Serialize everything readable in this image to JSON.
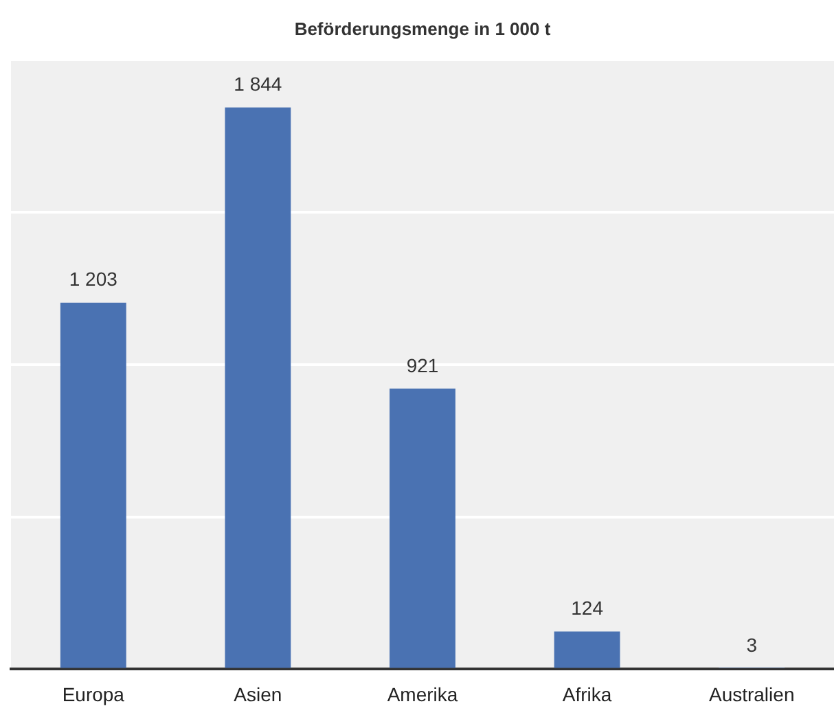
{
  "chart_data": {
    "type": "bar",
    "title": "Beförderungsmenge in 1 000 t",
    "categories": [
      "Europa",
      "Asien",
      "Amerika",
      "Afrika",
      "Australien"
    ],
    "values": [
      1203,
      1844,
      921,
      124,
      3
    ],
    "color": "#4a72b2",
    "value_labels": [
      "1 203",
      "1 844",
      "921",
      "124",
      "3"
    ],
    "ylim": [
      0,
      2000
    ],
    "yticks": [
      {
        "value": 0,
        "label": null
      },
      {
        "value": 500,
        "label": null
      },
      {
        "value": 1000,
        "label": null
      },
      {
        "value": 1500,
        "label": null
      },
      {
        "value": 2000,
        "label": null
      }
    ],
    "tick_labels": "x",
    "grid": "y",
    "legend": false
  }
}
